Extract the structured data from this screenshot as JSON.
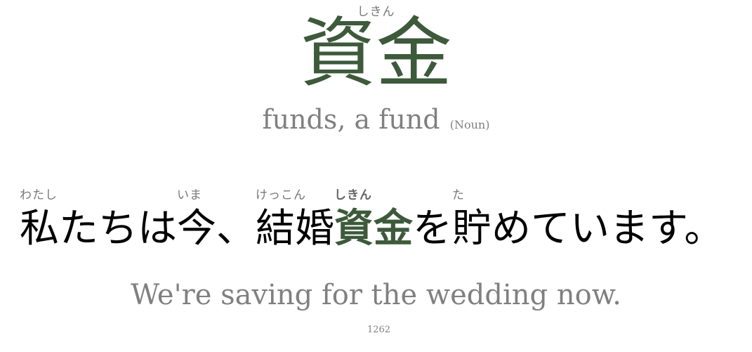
{
  "word": {
    "reading": "しきん",
    "kanji": "資金",
    "meaning": "funds, a fund",
    "part_of_speech": "(Noun)"
  },
  "sentence": {
    "segments": [
      {
        "ruby": "わたし",
        "text": "私",
        "highlight": false
      },
      {
        "ruby": "",
        "text": "たちは",
        "highlight": false
      },
      {
        "ruby": "いま",
        "text": "今",
        "highlight": false
      },
      {
        "ruby": "",
        "text": "、",
        "highlight": false
      },
      {
        "ruby": "けっこん",
        "text": "結婚",
        "highlight": false
      },
      {
        "ruby": "しきん",
        "text": "資金",
        "highlight": true
      },
      {
        "ruby": "",
        "text": "を",
        "highlight": false
      },
      {
        "ruby": "た",
        "text": "貯",
        "highlight": false
      },
      {
        "ruby": "",
        "text": "めています。",
        "highlight": false
      }
    ]
  },
  "translation": "We're saving for the wedding now.",
  "card_number": "1262",
  "colors": {
    "accent": "#3d5a3b",
    "muted": "#808080"
  }
}
